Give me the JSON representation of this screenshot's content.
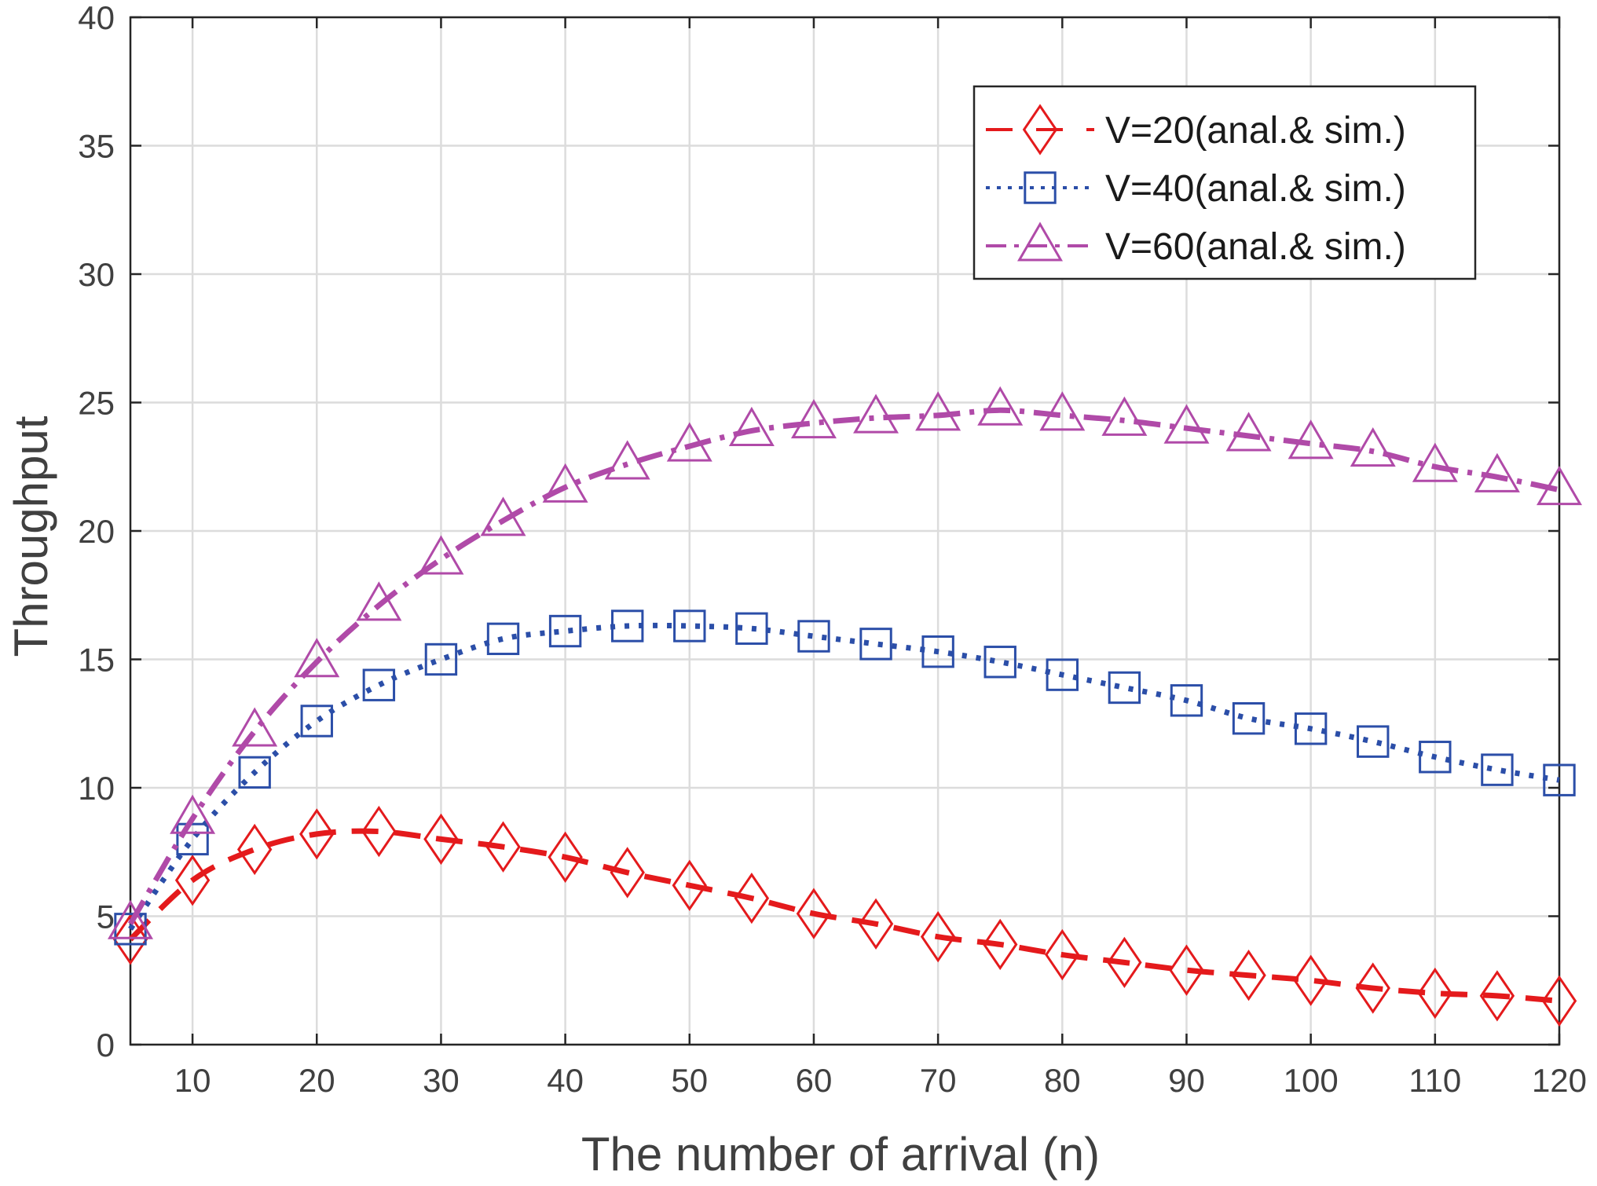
{
  "chart_data": {
    "type": "line",
    "xlabel": "The number of arrival (n)",
    "ylabel": "Throughput",
    "xlim": [
      5,
      120
    ],
    "ylim": [
      0,
      40
    ],
    "xticks": [
      10,
      20,
      30,
      40,
      50,
      60,
      70,
      80,
      90,
      100,
      110,
      120
    ],
    "yticks": [
      0,
      5,
      10,
      15,
      20,
      25,
      30,
      35,
      40
    ],
    "grid": true,
    "legend_position": "top-right",
    "x": [
      5,
      10,
      15,
      20,
      25,
      30,
      35,
      40,
      45,
      50,
      55,
      60,
      65,
      70,
      75,
      80,
      85,
      90,
      95,
      100,
      105,
      110,
      115,
      120
    ],
    "series": [
      {
        "name": "V=20(anal.& sim.)",
        "color": "#e41a1c",
        "line_style": "dashed",
        "marker": "diamond",
        "values": [
          4.1,
          6.4,
          7.6,
          8.2,
          8.3,
          8.0,
          7.7,
          7.3,
          6.7,
          6.2,
          5.7,
          5.1,
          4.7,
          4.2,
          3.9,
          3.5,
          3.2,
          2.9,
          2.7,
          2.5,
          2.2,
          2.0,
          1.9,
          1.7
        ]
      },
      {
        "name": "V=40(anal.& sim.)",
        "color": "#2b4ea8",
        "line_style": "dotted",
        "marker": "square",
        "values": [
          4.5,
          8.0,
          10.6,
          12.6,
          14.0,
          15.0,
          15.8,
          16.1,
          16.3,
          16.3,
          16.2,
          15.9,
          15.6,
          15.3,
          14.9,
          14.4,
          13.9,
          13.4,
          12.7,
          12.3,
          11.8,
          11.2,
          10.7,
          10.3
        ]
      },
      {
        "name": "V=60(anal.& sim.)",
        "color": "#b04aa8",
        "line_style": "dash-dot",
        "marker": "triangle",
        "values": [
          4.7,
          8.8,
          12.2,
          14.9,
          17.1,
          18.9,
          20.4,
          21.7,
          22.6,
          23.3,
          23.9,
          24.2,
          24.4,
          24.5,
          24.7,
          24.5,
          24.3,
          24.0,
          23.7,
          23.4,
          23.1,
          22.5,
          22.1,
          21.6
        ]
      }
    ]
  }
}
